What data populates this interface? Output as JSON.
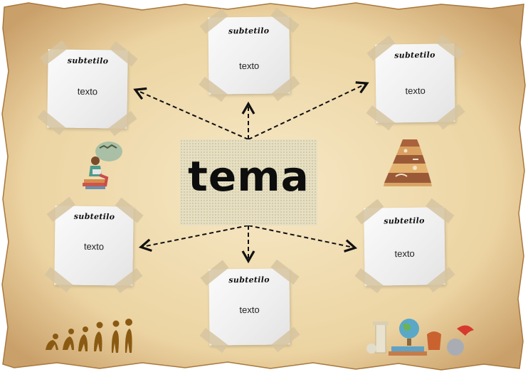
{
  "center": {
    "title": "tema"
  },
  "cards": [
    {
      "subtitle": "subtetilo",
      "text": "texto"
    },
    {
      "subtitle": "subtetilo",
      "text": "texto"
    },
    {
      "subtitle": "subtetilo",
      "text": "texto"
    },
    {
      "subtitle": "subtetilo",
      "text": "texto"
    },
    {
      "subtitle": "subtetilo",
      "text": "texto"
    },
    {
      "subtitle": "subtetilo",
      "text": "texto"
    }
  ],
  "decorations": [
    "reading-person-illustration",
    "rock-strata-fossils-illustration",
    "human-evolution-silhouettes",
    "history-artifacts-illustration"
  ],
  "colors": {
    "parchment": "#f1ddb2",
    "parchment_edge": "#b98a4d",
    "arrow": "#111111",
    "center_box": "#e6dfc3"
  }
}
